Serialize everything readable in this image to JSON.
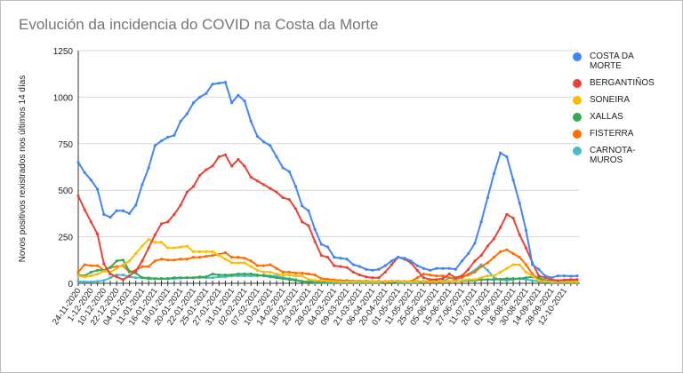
{
  "chart_data": {
    "type": "line",
    "title": "Evolución da incidencia do COVID na Costa da Morte",
    "xlabel": "",
    "ylabel": "Novos positivos rexistrados nos últimos 14 días",
    "ylim": [
      0,
      1250
    ],
    "yticks": [
      0,
      250,
      500,
      750,
      1000,
      1250
    ],
    "grid": true,
    "legend_position": "right",
    "x_tick_labels": [
      "24-11-2020",
      "1-12-2020",
      "10-12-2020",
      "22-12-2020",
      "04-01-2021",
      "11-01-2021",
      "16-01-2021",
      "18-01-2021",
      "20-01-2021",
      "22-01-2021",
      "25-01-2021",
      "27-01-2021",
      "31-01-2021",
      "02-02-2021",
      "07-02-2021",
      "10-02-2021",
      "14-02-2021",
      "18-02-2021",
      "23-02-2021",
      "28-02-2021",
      "04-03-2021",
      "09-03-2021",
      "21-03-2021",
      "06-04-2021",
      "20-04-2021",
      "01-05-2021",
      "11-05-2021",
      "25-05-2021",
      "05-06-2021",
      "15-06-2021",
      "27-06-2021",
      "11-07-2021",
      "20-07-2021",
      "01-08-2021",
      "16-08-2021",
      "30-08-2021",
      "14-09-2021",
      "28-09-2021",
      "12-10-2021"
    ],
    "series": [
      {
        "name": "COSTA DA MORTE",
        "color": "#4285F4",
        "values": [
          650,
          595,
          555,
          505,
          370,
          355,
          390,
          390,
          375,
          420,
          530,
          620,
          740,
          765,
          785,
          795,
          870,
          910,
          970,
          1000,
          1020,
          1070,
          1075,
          1080,
          970,
          1010,
          980,
          870,
          790,
          760,
          740,
          680,
          620,
          600,
          520,
          415,
          390,
          290,
          210,
          195,
          140,
          135,
          130,
          100,
          90,
          75,
          70,
          75,
          95,
          120,
          140,
          135,
          120,
          95,
          80,
          70,
          80,
          80,
          80,
          75,
          120,
          160,
          215,
          330,
          460,
          590,
          700,
          680,
          555,
          430,
          285,
          100,
          75,
          40,
          30,
          40,
          40,
          38,
          40
        ]
      },
      {
        "name": "BERGANTIÑOS",
        "color": "#EA4335",
        "values": [
          470,
          395,
          330,
          265,
          105,
          50,
          35,
          20,
          40,
          65,
          120,
          190,
          260,
          320,
          330,
          370,
          420,
          490,
          520,
          580,
          610,
          630,
          680,
          690,
          630,
          665,
          630,
          570,
          550,
          530,
          510,
          490,
          460,
          450,
          400,
          330,
          310,
          225,
          150,
          140,
          95,
          90,
          85,
          60,
          45,
          35,
          30,
          30,
          60,
          100,
          140,
          130,
          110,
          70,
          30,
          20,
          20,
          25,
          50,
          30,
          40,
          75,
          120,
          150,
          200,
          240,
          300,
          370,
          350,
          260,
          190,
          110,
          40,
          30,
          20,
          15,
          18,
          20,
          20
        ]
      },
      {
        "name": "SONEIRA",
        "color": "#FBBC04",
        "values": [
          40,
          35,
          40,
          50,
          65,
          60,
          80,
          100,
          120,
          160,
          200,
          235,
          220,
          220,
          190,
          190,
          195,
          200,
          170,
          170,
          170,
          170,
          150,
          130,
          110,
          110,
          110,
          90,
          70,
          60,
          60,
          50,
          45,
          45,
          40,
          40,
          20,
          15,
          15,
          12,
          10,
          8,
          8,
          8,
          8,
          8,
          8,
          8,
          8,
          10,
          10,
          8,
          8,
          8,
          8,
          8,
          8,
          8,
          10,
          10,
          15,
          20,
          20,
          30,
          40,
          40,
          60,
          80,
          100,
          100,
          60,
          40,
          15,
          10,
          8,
          8,
          8,
          8,
          8
        ]
      },
      {
        "name": "XALLAS",
        "color": "#34A853",
        "values": [
          45,
          40,
          60,
          70,
          70,
          85,
          120,
          125,
          65,
          55,
          30,
          25,
          25,
          25,
          25,
          30,
          30,
          30,
          30,
          35,
          35,
          50,
          45,
          45,
          45,
          50,
          50,
          50,
          45,
          40,
          35,
          30,
          25,
          20,
          15,
          10,
          8,
          8,
          8,
          8,
          8,
          8,
          8,
          8,
          8,
          8,
          8,
          10,
          8,
          8,
          8,
          8,
          10,
          10,
          10,
          10,
          10,
          10,
          10,
          12,
          12,
          15,
          15,
          20,
          20,
          20,
          22,
          25,
          25,
          25,
          30,
          35,
          30,
          15,
          10,
          8,
          8,
          8,
          8
        ]
      },
      {
        "name": "FISTERRA",
        "color": "#FF6D01",
        "values": [
          60,
          100,
          95,
          95,
          70,
          85,
          90,
          95,
          60,
          70,
          90,
          90,
          120,
          130,
          125,
          125,
          130,
          130,
          140,
          140,
          145,
          150,
          155,
          165,
          140,
          140,
          135,
          120,
          95,
          95,
          100,
          80,
          60,
          60,
          55,
          55,
          50,
          45,
          25,
          22,
          18,
          15,
          15,
          12,
          12,
          12,
          10,
          10,
          10,
          12,
          12,
          10,
          10,
          30,
          50,
          45,
          40,
          40,
          30,
          25,
          35,
          45,
          60,
          90,
          110,
          140,
          170,
          180,
          160,
          140,
          100,
          50,
          20,
          15,
          15,
          12,
          15,
          15,
          15
        ]
      },
      {
        "name": "CARNOTA-MUROS",
        "color": "#46BDC6",
        "values": [
          10,
          8,
          8,
          10,
          15,
          30,
          45,
          45,
          35,
          30,
          30,
          30,
          25,
          25,
          25,
          25,
          28,
          30,
          30,
          30,
          30,
          30,
          35,
          35,
          40,
          40,
          40,
          40,
          40,
          45,
          40,
          40,
          30,
          25,
          20,
          10,
          8,
          5,
          5,
          5,
          5,
          5,
          5,
          5,
          5,
          5,
          5,
          5,
          8,
          8,
          5,
          5,
          5,
          5,
          8,
          10,
          8,
          8,
          30,
          20,
          30,
          50,
          70,
          100,
          70,
          30,
          20,
          15,
          20,
          25,
          20,
          15,
          10,
          8,
          5,
          5,
          5,
          5,
          5
        ]
      }
    ]
  },
  "legend": [
    {
      "label": "COSTA DA MORTE",
      "color": "#4285F4"
    },
    {
      "label": "BERGANTIÑOS",
      "color": "#EA4335"
    },
    {
      "label": "SONEIRA",
      "color": "#FBBC04"
    },
    {
      "label": "XALLAS",
      "color": "#34A853"
    },
    {
      "label": "FISTERRA",
      "color": "#FF6D01"
    },
    {
      "label": "CARNOTA-MUROS",
      "color": "#46BDC6"
    }
  ]
}
